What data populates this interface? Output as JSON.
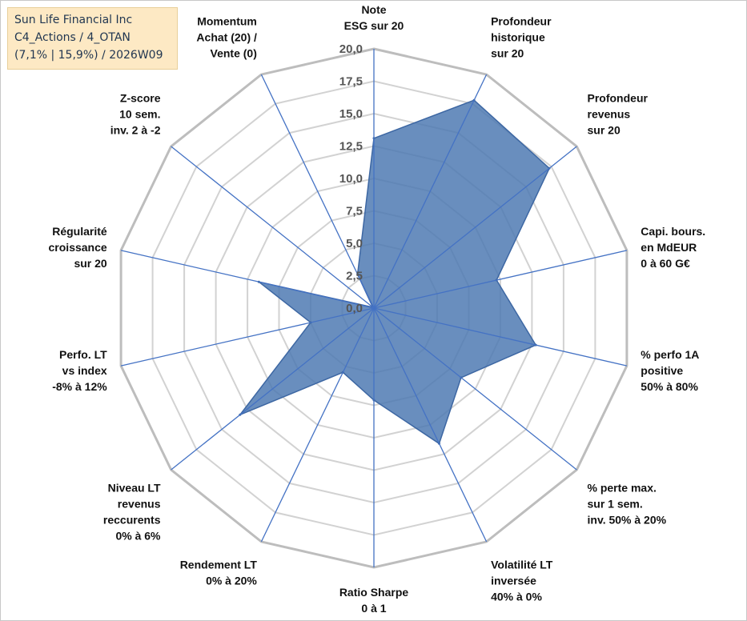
{
  "title_box": {
    "line1": "Sun Life Financial Inc",
    "line2": "C4_Actions / 4_OTAN",
    "line3": "(7,1% | 15,9%) / 2026W09"
  },
  "chart_data": {
    "type": "radar",
    "rmin": 0,
    "rmax": 20,
    "ticks": [
      "0,0",
      "2,5",
      "5,0",
      "7,5",
      "10,0",
      "12,5",
      "15,0",
      "17,5",
      "20,0"
    ],
    "axes": [
      [
        "Note",
        "ESG sur 20"
      ],
      [
        "Profondeur",
        "historique",
        "sur 20"
      ],
      [
        "Profondeur",
        "revenus",
        "sur 20"
      ],
      [
        "Capi. bours.",
        "en MdEUR",
        "0 à 60 G€"
      ],
      [
        "% perfo 1A",
        "positive",
        "50% à 80%"
      ],
      [
        "% perte max.",
        "sur 1 sem.",
        "inv. 50% à 20%"
      ],
      [
        "Volatilité LT",
        "inversée",
        "40% à 0%"
      ],
      [
        "Ratio Sharpe",
        "0 à 1"
      ],
      [
        "Rendement LT",
        "0% à 20%"
      ],
      [
        "Niveau LT",
        "revenus",
        "reccurents",
        "0% à 6%"
      ],
      [
        "Perfo. LT",
        "vs index",
        "-8% à 12%"
      ],
      [
        "Régularité",
        "croissance",
        "sur 20"
      ],
      [
        "Z-score",
        "10 sem.",
        "inv. 2 à -2"
      ],
      [
        "Momentum",
        "Achat (20) /",
        "Vente (0)"
      ]
    ],
    "series": [
      {
        "name": "Sun Life Financial Inc",
        "values": [
          13.1,
          17.8,
          17.3,
          9.7,
          12.8,
          8.6,
          11.6,
          7.1,
          5.5,
          13.2,
          5.0,
          9.1,
          0.1,
          2.9
        ],
        "color": "#4f7ab3"
      }
    ],
    "grid": true
  }
}
